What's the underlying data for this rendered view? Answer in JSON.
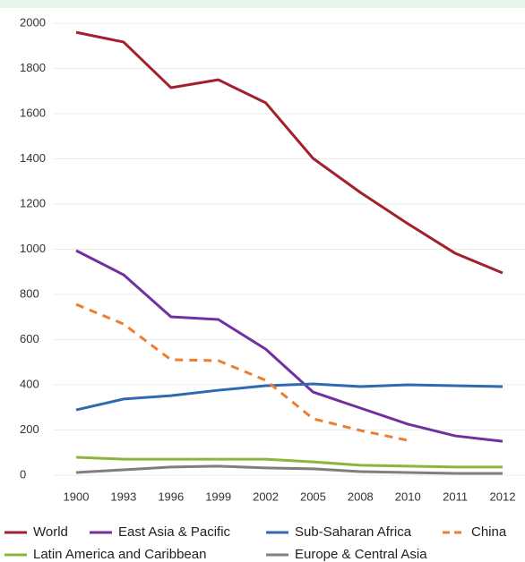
{
  "chart_data": {
    "type": "line",
    "categories": [
      "1900",
      "1993",
      "1996",
      "1999",
      "2002",
      "2005",
      "2008",
      "2010",
      "2011",
      "2012"
    ],
    "series": [
      {
        "name": "World",
        "color": "#a3202e",
        "dashed": false,
        "values": [
          1960,
          1917,
          1715,
          1750,
          1648,
          1402,
          1251,
          1113,
          982,
          895
        ]
      },
      {
        "name": "East Asia & Pacific",
        "color": "#7030a0",
        "dashed": false,
        "values": [
          994,
          887,
          701,
          689,
          558,
          368,
          297,
          226,
          174,
          150
        ]
      },
      {
        "name": "Sub-Saharan Africa",
        "color": "#2e6ab0",
        "dashed": false,
        "values": [
          289,
          337,
          352,
          376,
          396,
          404,
          392,
          400,
          396,
          392
        ]
      },
      {
        "name": "China",
        "color": "#ed7d31",
        "dashed": true,
        "values": [
          756,
          669,
          511,
          507,
          420,
          250,
          198,
          154,
          null,
          null
        ]
      },
      {
        "name": "Latin America and Caribbean",
        "color": "#8db43c",
        "dashed": false,
        "values": [
          79,
          71,
          71,
          71,
          71,
          59,
          44,
          40,
          36,
          36
        ]
      },
      {
        "name": "Europe & Central Asia",
        "color": "#7f7f7f",
        "dashed": false,
        "values": [
          12,
          24,
          36,
          40,
          32,
          28,
          16,
          12,
          8,
          8
        ]
      }
    ],
    "ylim": [
      0,
      2000
    ],
    "yticks": [
      0,
      200,
      400,
      600,
      800,
      1000,
      1200,
      1400,
      1600,
      1800,
      2000
    ],
    "grid": true,
    "legend": "bottom"
  }
}
